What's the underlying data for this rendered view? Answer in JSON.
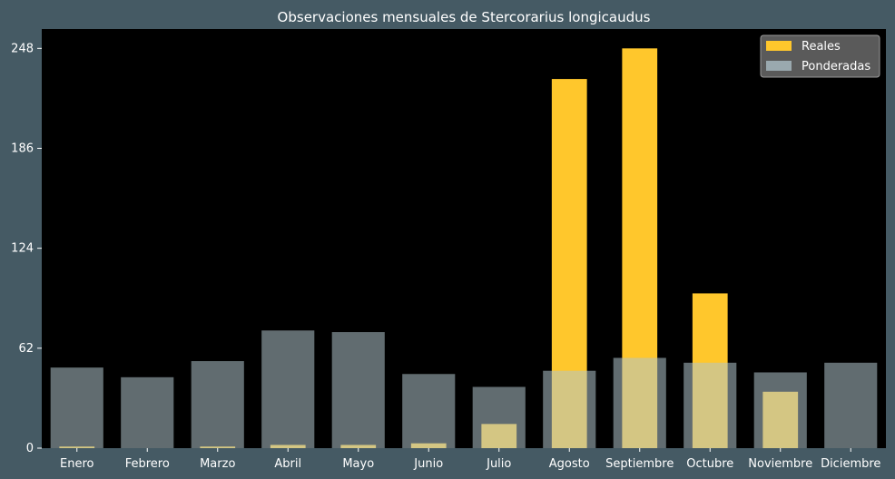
{
  "chart_data": {
    "type": "bar",
    "title": "Observaciones mensuales de Stercorarius longicaudus",
    "xlabel": "",
    "ylabel": "",
    "categories": [
      "Enero",
      "Febrero",
      "Marzo",
      "Abril",
      "Mayo",
      "Junio",
      "Julio",
      "Agosto",
      "Septiembre",
      "Octubre",
      "Noviembre",
      "Diciembre"
    ],
    "yticks": [
      "0",
      "62",
      "124",
      "186",
      "248"
    ],
    "ylim": [
      0,
      260
    ],
    "series": [
      {
        "name": "Reales",
        "color": "#ffc72c",
        "values": [
          1,
          0,
          1,
          2,
          2,
          3,
          15,
          229,
          248,
          96,
          35,
          0
        ]
      },
      {
        "name": "Ponderadas",
        "color": "#b0c4cc",
        "opacity": 0.55,
        "values": [
          50,
          44,
          54,
          73,
          72,
          46,
          38,
          48,
          56,
          53,
          47,
          53
        ]
      }
    ],
    "legend_position": "top-right",
    "grid": false,
    "colors": {
      "background": "#455a64",
      "plot": "#000000",
      "text": "#ffffff"
    }
  }
}
